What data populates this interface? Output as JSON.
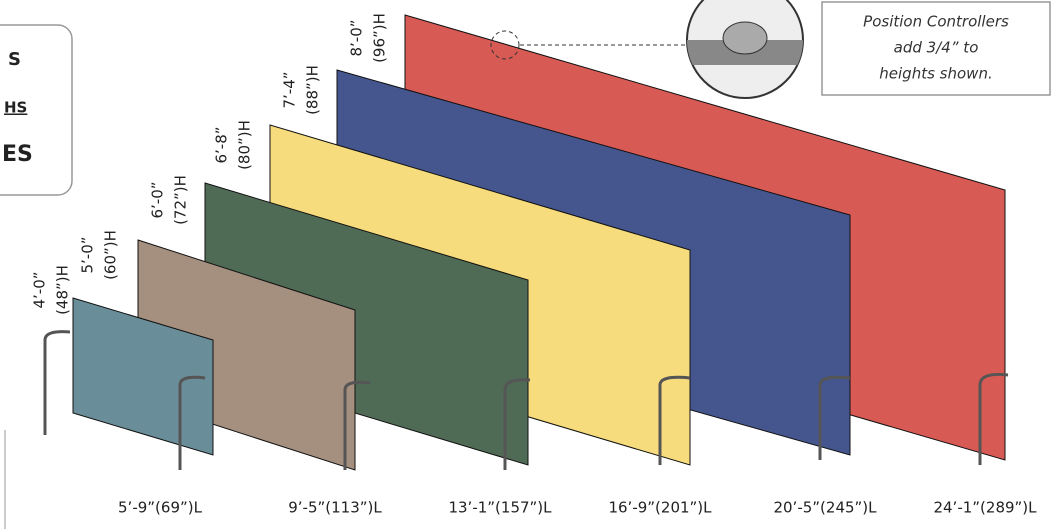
{
  "left_box": {
    "lines": [
      "S",
      "HS",
      "ES"
    ]
  },
  "note": {
    "lines": [
      "Position Controllers",
      "add 3/4” to",
      "heights shown."
    ]
  },
  "panels": [
    {
      "height": [
        "4’-0”",
        "(48”)H"
      ],
      "length": "5’-9”(69”)L"
    },
    {
      "height": [
        "5’-0”",
        "(60”)H"
      ],
      "length": "9’-5”(113”)L"
    },
    {
      "height": [
        "6’-0”",
        "(72”)H"
      ],
      "length": "13’-1”(157”)L"
    },
    {
      "height": [
        "6’-8”",
        "(80”)H"
      ],
      "length": "16’-9”(201”)L"
    },
    {
      "height": [
        "7’-4”",
        "(88”)H"
      ],
      "length": "20’-5”(245”)L"
    },
    {
      "height": [
        "8’-0”",
        "(96”)H"
      ],
      "length": "24’-1”(289”)L"
    }
  ]
}
